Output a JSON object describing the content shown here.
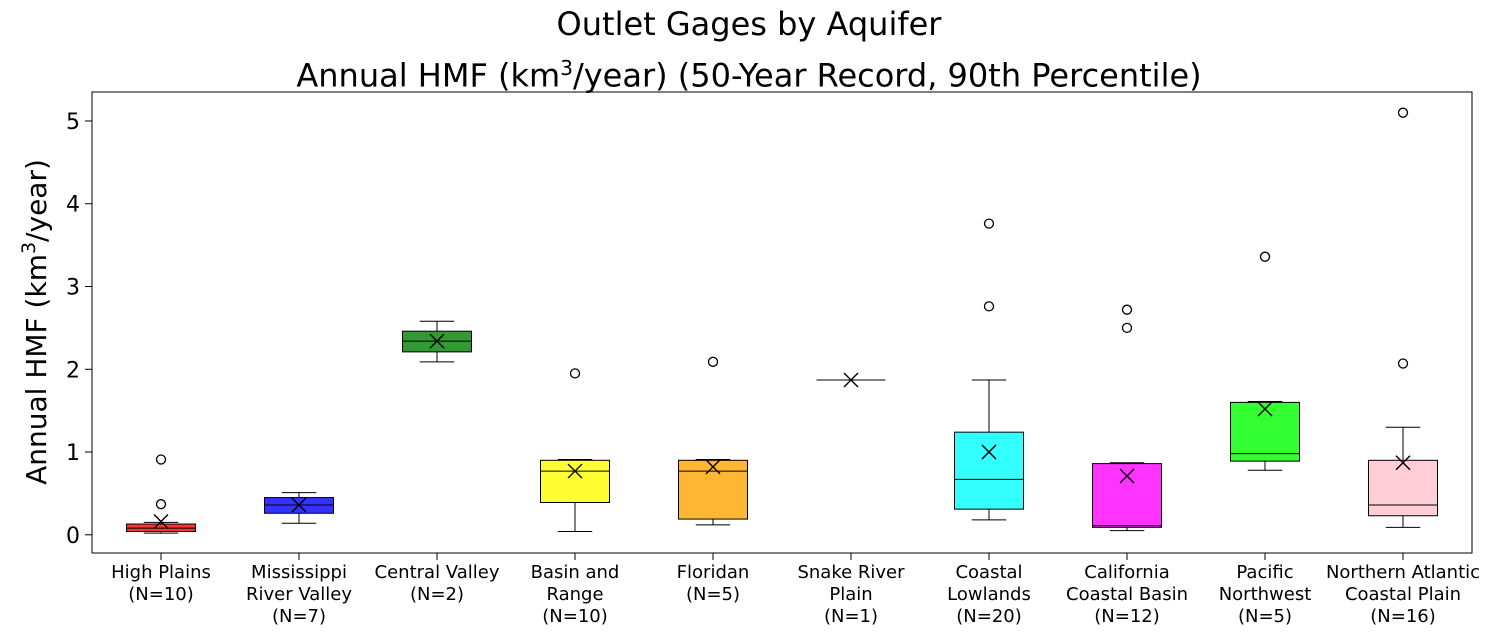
{
  "chart_data": {
    "type": "box",
    "title_line1": "Outlet Gages by Aquifer",
    "title_line2": {
      "prefix": "Annual HMF (km",
      "sup": "3",
      "suffix": "/year) (50-Year Record, 90th Percentile)"
    },
    "ylabel": {
      "prefix": "Annual HMF (km",
      "sup": "3",
      "suffix": "/year)"
    },
    "ylim": [
      -0.22,
      5.35
    ],
    "yticks": [
      0,
      1,
      2,
      3,
      4,
      5
    ],
    "grid": false,
    "boxes": [
      {
        "label": [
          "High Plains",
          "(N=10)"
        ],
        "color": "#ff0000",
        "q1": 0.04,
        "median": 0.08,
        "q3": 0.13,
        "whisker_low": 0.02,
        "whisker_high": 0.15,
        "mean": 0.16,
        "outliers": [
          0.91,
          0.37
        ]
      },
      {
        "label": [
          "Mississippi",
          "River Valley",
          "(N=7)"
        ],
        "color": "#0000ff",
        "q1": 0.26,
        "median": 0.36,
        "q3": 0.45,
        "whisker_low": 0.14,
        "whisker_high": 0.51,
        "mean": 0.36,
        "outliers": []
      },
      {
        "label": [
          "Central Valley",
          "(N=2)"
        ],
        "color": "#008000",
        "q1": 2.21,
        "median": 2.34,
        "q3": 2.46,
        "whisker_low": 2.09,
        "whisker_high": 2.58,
        "mean": 2.34,
        "outliers": []
      },
      {
        "label": [
          "Basin and",
          "Range",
          "(N=10)"
        ],
        "color": "#ffff00",
        "q1": 0.39,
        "median": 0.77,
        "q3": 0.9,
        "whisker_low": 0.04,
        "whisker_high": 0.91,
        "mean": 0.77,
        "outliers": [
          1.95
        ]
      },
      {
        "label": [
          "Floridan",
          "(N=5)"
        ],
        "color": "#ffa500",
        "q1": 0.19,
        "median": 0.77,
        "q3": 0.9,
        "whisker_low": 0.12,
        "whisker_high": 0.91,
        "mean": 0.82,
        "outliers": [
          2.09
        ]
      },
      {
        "label": [
          "Snake River",
          "Plain",
          "(N=1)"
        ],
        "color": "#808080",
        "q1": 1.87,
        "median": 1.87,
        "q3": 1.87,
        "whisker_low": 1.87,
        "whisker_high": 1.87,
        "mean": 1.87,
        "outliers": []
      },
      {
        "label": [
          "Coastal",
          "Lowlands",
          "(N=20)"
        ],
        "color": "#00ffff",
        "q1": 0.31,
        "median": 0.67,
        "q3": 1.24,
        "whisker_low": 0.18,
        "whisker_high": 1.87,
        "mean": 1.0,
        "outliers": [
          3.76,
          2.76
        ]
      },
      {
        "label": [
          "California",
          "Coastal Basin",
          "(N=12)"
        ],
        "color": "#ff00ff",
        "q1": 0.09,
        "median": 0.11,
        "q3": 0.86,
        "whisker_low": 0.05,
        "whisker_high": 0.87,
        "mean": 0.71,
        "outliers": [
          2.72,
          2.5
        ]
      },
      {
        "label": [
          "Pacific",
          "Northwest",
          "(N=5)"
        ],
        "color": "#00ff00",
        "q1": 0.89,
        "median": 0.98,
        "q3": 1.6,
        "whisker_low": 0.78,
        "whisker_high": 1.61,
        "mean": 1.52,
        "outliers": [
          3.36
        ]
      },
      {
        "label": [
          "Northern Atlantic",
          "Coastal Plain",
          "(N=16)"
        ],
        "color": "#ffc0cb",
        "q1": 0.23,
        "median": 0.36,
        "q3": 0.9,
        "whisker_low": 0.09,
        "whisker_high": 1.3,
        "mean": 0.87,
        "outliers": [
          5.1,
          2.07
        ]
      }
    ]
  }
}
